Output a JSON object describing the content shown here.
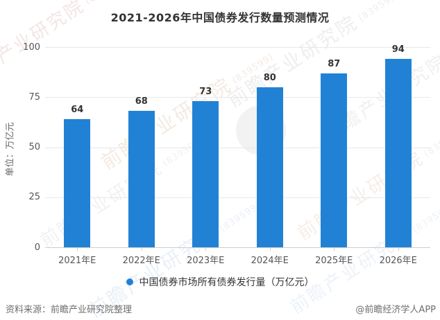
{
  "title": "2021-2026年中国债券发行数量预测情况",
  "chart_data": {
    "type": "bar",
    "categories": [
      "2021年E",
      "2022年E",
      "2023年E",
      "2024年E",
      "2025年E",
      "2026年E"
    ],
    "values": [
      64,
      68,
      73,
      80,
      87,
      94
    ],
    "series": [
      {
        "name": "中国债券市场所有债券发行量（万亿元）",
        "values": [
          64,
          68,
          73,
          80,
          87,
          94
        ]
      }
    ],
    "title": "2021-2026年中国债券发行数量预测情况",
    "xlabel": "",
    "ylabel": "单位：万亿元",
    "ylim": [
      0,
      100
    ],
    "yticks": [
      0,
      25,
      50,
      75,
      100
    ],
    "grid": true,
    "legend_position": "bottom",
    "bar_color": "#2182d5"
  },
  "y_axis": {
    "unit_label": "单位：万亿元"
  },
  "legend": {
    "label": "中国债券市场所有债券发行量（万亿元）",
    "marker_color": "#2182d5"
  },
  "footer": {
    "source": "资料来源：前瞻产业研究院整理",
    "credit": "@前瞻经济学人APP"
  },
  "watermark": {
    "text": "前瞻产业研究院",
    "code": "(839599)"
  },
  "colors": {
    "bar": "#2182d5",
    "gridline": "#e7e7e7",
    "axis": "#cccccc",
    "title_text": "#333333",
    "tick_label": "#555555",
    "value_label": "#333333",
    "footer_text": "#6e6e6e"
  }
}
